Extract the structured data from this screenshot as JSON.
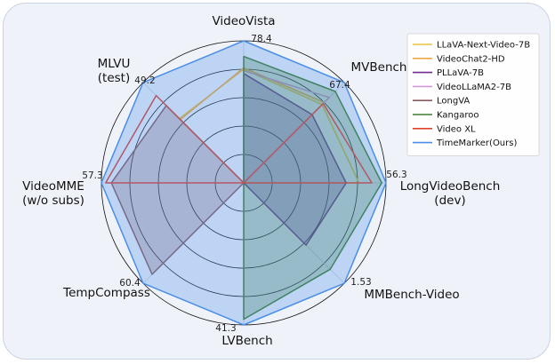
{
  "chart_data": {
    "type": "radar",
    "title": "",
    "axes": [
      {
        "name": "VideoVista",
        "max_label": "78.4"
      },
      {
        "name": "MVBench",
        "max_label": "67.4"
      },
      {
        "name": "LongVideoBench\n(dev)",
        "max_label": "56.3"
      },
      {
        "name": "MMBench-Video",
        "max_label": "1.53"
      },
      {
        "name": "LVBench",
        "max_label": "41.3"
      },
      {
        "name": "TempCompass",
        "max_label": "60.4"
      },
      {
        "name": "VideoMME\n(w/o subs)",
        "max_label": "57.3"
      },
      {
        "name": "MLVU\n(test)",
        "max_label": "49.2"
      }
    ],
    "scale": "fraction of each axis maximum",
    "grid_rings": [
      0.2,
      0.4,
      0.6,
      0.8,
      1.0
    ],
    "legend_position": "top-right",
    "series": [
      {
        "name": "LLaVA-Next-Video-7B",
        "color": "#e8c33a",
        "fill": false,
        "values": [
          0.8,
          0.78,
          0.81,
          0,
          0,
          0,
          0,
          0.64
        ]
      },
      {
        "name": "VideoChat2-HD",
        "color": "#f0a847",
        "fill": false,
        "values": [
          0.81,
          0.8,
          0,
          0,
          0,
          0,
          0,
          0.63
        ]
      },
      {
        "name": "PLLaVA-7B",
        "color": "#6a2d8c",
        "fill": true,
        "values": [
          0.77,
          0.68,
          0.72,
          0.62,
          0,
          0,
          0,
          0
        ]
      },
      {
        "name": "VideoLLaMA2-7B",
        "color": "#d499dc",
        "fill": false,
        "values": [
          0.79,
          0.85,
          0,
          0,
          0,
          0,
          0,
          0
        ]
      },
      {
        "name": "LongVA",
        "color": "#8a5a5e",
        "fill": true,
        "values": [
          0,
          0,
          0,
          0,
          0,
          0.91,
          0.93,
          0.77
        ]
      },
      {
        "name": "Kangaroo",
        "color": "#3d7d2c",
        "fill": true,
        "values": [
          0.89,
          0.91,
          0.97,
          0.86,
          0.96,
          0,
          0,
          0
        ]
      },
      {
        "name": "Video XL",
        "color": "#e0402c",
        "fill": false,
        "values": [
          0,
          0.79,
          0.9,
          0,
          0,
          0,
          0.97,
          0.87
        ]
      },
      {
        "name": "TimeMarker(Ours)",
        "color": "#4a8ee8",
        "fill": true,
        "values": [
          1.0,
          1.0,
          1.0,
          1.0,
          1.0,
          1.0,
          1.0,
          1.0
        ]
      }
    ]
  }
}
